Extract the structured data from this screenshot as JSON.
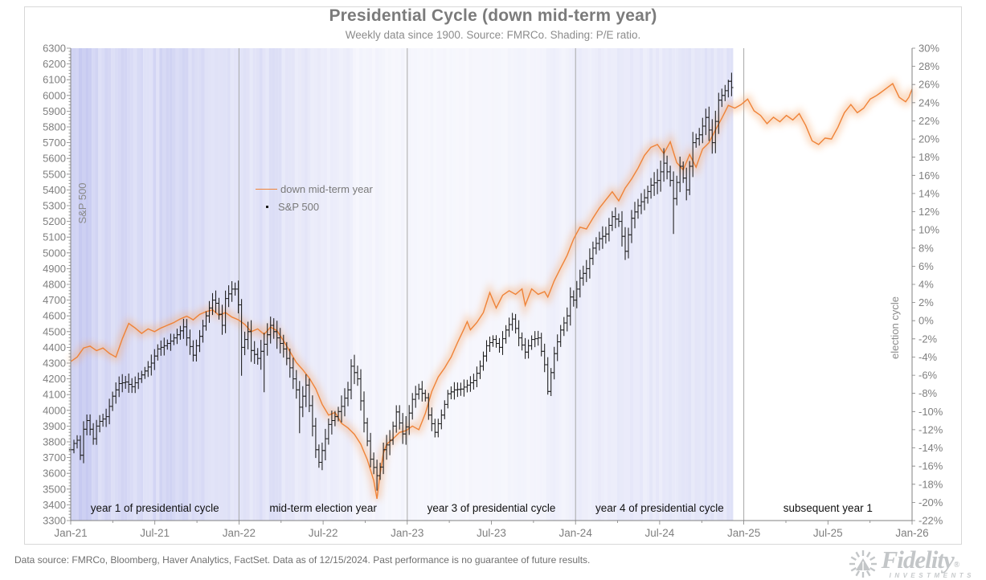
{
  "footer": {
    "text": "Data source: FMRCo, Bloomberg, Haver Analytics, FactSet. Data as of 12/15/2024. Past performance is no guarantee of future results.",
    "logo_brand": "Fidelity",
    "logo_reg": "®",
    "logo_sub": "INVESTMENTS"
  },
  "colors": {
    "accent_orange": "#ef8338",
    "glow_orange": "#f6a466",
    "shading_base": "#bcc0ee",
    "year_grid": "#a8a8a8",
    "axis": "#808080",
    "tick_text": "#7f7f7f",
    "section_text": "#111111",
    "bars": "#1a1a1a",
    "frame": "#d8d8d8"
  },
  "chart_data": {
    "type": "line",
    "title": "Presidential Cycle (down mid-term year)",
    "subtitle": "Weekly data since 1900. Source: FMRCo. Shading: P/E ratio.",
    "x_tick_labels": [
      "Jan-21",
      "Jul-21",
      "Jan-22",
      "Jul-22",
      "Jan-23",
      "Jul-23",
      "Jan-24",
      "Jul-24",
      "Jan-25",
      "Jul-25",
      "Jan-26"
    ],
    "weeks_per_year": 52.2,
    "years_span": 5,
    "left_axis": {
      "label": "S&P 500",
      "min": 3300,
      "max": 6300,
      "step": 100,
      "minor_step": 20
    },
    "right_axis": {
      "label": "election cycle",
      "min": -22,
      "max": 30,
      "step": 2,
      "suffix": "%"
    },
    "section_labels": [
      "year 1 of presidential cycle",
      "mid-term election year",
      "year 3 of presidential cycle",
      "year 4 of presidential cycle",
      "subsequent year 1"
    ],
    "legend_position": "inside-top-left",
    "grid": "vertical-year-lines",
    "series": [
      {
        "name": "down mid-term year",
        "axis": "right",
        "style": "line-glow",
        "unit": "%",
        "x_unit": "weeks since Jan-2021",
        "points": [
          [
            0,
            -4.5
          ],
          [
            2,
            -4.0
          ],
          [
            4,
            -3.0
          ],
          [
            6,
            -2.8
          ],
          [
            8,
            -3.3
          ],
          [
            10,
            -3.0
          ],
          [
            12,
            -3.6
          ],
          [
            14,
            -4.0
          ],
          [
            16,
            -2.0
          ],
          [
            18,
            -0.3
          ],
          [
            20,
            -0.8
          ],
          [
            22,
            -1.4
          ],
          [
            24,
            -0.9
          ],
          [
            26,
            -1.2
          ],
          [
            28,
            -0.8
          ],
          [
            30,
            -0.5
          ],
          [
            32,
            -0.2
          ],
          [
            34,
            0.2
          ],
          [
            36,
            0.5
          ],
          [
            38,
            0.1
          ],
          [
            40,
            0.7
          ],
          [
            42,
            1.0
          ],
          [
            44,
            1.2
          ],
          [
            46,
            0.6
          ],
          [
            48,
            0.9
          ],
          [
            50,
            0.4
          ],
          [
            52,
            0.1
          ],
          [
            54,
            -0.4
          ],
          [
            56,
            -1.2
          ],
          [
            58,
            -0.9
          ],
          [
            60,
            -1.5
          ],
          [
            62,
            -0.7
          ],
          [
            64,
            -1.1
          ],
          [
            66,
            -2.2
          ],
          [
            68,
            -3.4
          ],
          [
            70,
            -4.6
          ],
          [
            72,
            -5.4
          ],
          [
            74,
            -6.3
          ],
          [
            76,
            -7.5
          ],
          [
            78,
            -9.2
          ],
          [
            80,
            -10.4
          ],
          [
            82,
            -10.1
          ],
          [
            84,
            -11.3
          ],
          [
            86,
            -11.8
          ],
          [
            88,
            -12.5
          ],
          [
            90,
            -13.6
          ],
          [
            92,
            -15.3
          ],
          [
            94,
            -17.6
          ],
          [
            95,
            -19.6
          ],
          [
            96,
            -16.8
          ],
          [
            97,
            -14.6
          ],
          [
            98,
            -13.6
          ],
          [
            100,
            -13.0
          ],
          [
            102,
            -12.3
          ],
          [
            104,
            -12.1
          ],
          [
            106,
            -11.6
          ],
          [
            108,
            -12.0
          ],
          [
            110,
            -10.2
          ],
          [
            112,
            -7.8
          ],
          [
            114,
            -6.2
          ],
          [
            116,
            -5.2
          ],
          [
            118,
            -4.0
          ],
          [
            120,
            -2.4
          ],
          [
            122,
            -0.9
          ],
          [
            123,
            -0.1
          ],
          [
            124,
            -1.0
          ],
          [
            126,
            -0.2
          ],
          [
            128,
            0.9
          ],
          [
            130,
            3.1
          ],
          [
            132,
            1.4
          ],
          [
            134,
            2.8
          ],
          [
            136,
            3.3
          ],
          [
            138,
            2.9
          ],
          [
            140,
            3.5
          ],
          [
            141,
            1.7
          ],
          [
            143,
            3.5
          ],
          [
            145,
            2.9
          ],
          [
            147,
            3.2
          ],
          [
            148,
            2.6
          ],
          [
            150,
            4.4
          ],
          [
            152,
            5.8
          ],
          [
            154,
            7.2
          ],
          [
            156,
            9.0
          ],
          [
            158,
            10.3
          ],
          [
            160,
            10.1
          ],
          [
            162,
            11.3
          ],
          [
            164,
            12.4
          ],
          [
            166,
            13.3
          ],
          [
            168,
            14.2
          ],
          [
            170,
            13.2
          ],
          [
            172,
            14.6
          ],
          [
            174,
            15.6
          ],
          [
            176,
            16.8
          ],
          [
            178,
            18.2
          ],
          [
            180,
            19.1
          ],
          [
            182,
            19.4
          ],
          [
            184,
            18.4
          ],
          [
            186,
            19.7
          ],
          [
            188,
            17.4
          ],
          [
            190,
            16.6
          ],
          [
            192,
            18.3
          ],
          [
            194,
            16.9
          ],
          [
            196,
            18.9
          ],
          [
            198,
            19.6
          ],
          [
            200,
            21.0
          ],
          [
            202,
            22.3
          ],
          [
            204,
            23.7
          ],
          [
            206,
            23.4
          ],
          [
            208,
            23.8
          ],
          [
            210,
            24.4
          ],
          [
            212,
            23.1
          ],
          [
            214,
            22.6
          ],
          [
            216,
            21.7
          ],
          [
            218,
            22.4
          ],
          [
            220,
            21.9
          ],
          [
            222,
            22.6
          ],
          [
            224,
            22.1
          ],
          [
            226,
            22.8
          ],
          [
            228,
            21.5
          ],
          [
            230,
            19.8
          ],
          [
            232,
            19.4
          ],
          [
            234,
            20.1
          ],
          [
            236,
            20.0
          ],
          [
            238,
            21.3
          ],
          [
            240,
            22.9
          ],
          [
            242,
            23.8
          ],
          [
            244,
            22.9
          ],
          [
            246,
            23.4
          ],
          [
            248,
            24.4
          ],
          [
            250,
            24.8
          ],
          [
            252,
            25.3
          ],
          [
            255,
            26.1
          ],
          [
            257,
            24.6
          ],
          [
            259,
            24.1
          ],
          [
            260,
            24.6
          ],
          [
            261,
            25.5
          ]
        ]
      },
      {
        "name": "S&P 500",
        "axis": "left",
        "style": "weekly-hilo-bars",
        "last_week": 205,
        "close_anchors": [
          [
            0,
            3750
          ],
          [
            1,
            3790
          ],
          [
            2,
            3810
          ],
          [
            3,
            3715
          ],
          [
            4,
            3880
          ],
          [
            5,
            3935
          ],
          [
            6,
            3880
          ],
          [
            7,
            3820
          ],
          [
            8,
            3900
          ],
          [
            9,
            3930
          ],
          [
            11,
            3960
          ],
          [
            13,
            4090
          ],
          [
            14,
            4130
          ],
          [
            15,
            4170
          ],
          [
            17,
            4180
          ],
          [
            19,
            4150
          ],
          [
            21,
            4200
          ],
          [
            23,
            4250
          ],
          [
            25,
            4300
          ],
          [
            27,
            4390
          ],
          [
            29,
            4410
          ],
          [
            31,
            4440
          ],
          [
            33,
            4480
          ],
          [
            35,
            4530
          ],
          [
            36,
            4460
          ],
          [
            38,
            4350
          ],
          [
            40,
            4470
          ],
          [
            42,
            4600
          ],
          [
            44,
            4700
          ],
          [
            45,
            4680
          ],
          [
            47,
            4540
          ],
          [
            48,
            4710
          ],
          [
            50,
            4770
          ],
          [
            51,
            4770
          ],
          [
            52,
            4670
          ],
          [
            53,
            4400
          ],
          [
            55,
            4500
          ],
          [
            56,
            4380
          ],
          [
            58,
            4330
          ],
          [
            60,
            4420
          ],
          [
            62,
            4540
          ],
          [
            64,
            4460
          ],
          [
            66,
            4390
          ],
          [
            68,
            4270
          ],
          [
            70,
            4130
          ],
          [
            71,
            4020
          ],
          [
            73,
            4160
          ],
          [
            75,
            3900
          ],
          [
            76,
            3750
          ],
          [
            77,
            3670
          ],
          [
            79,
            3820
          ],
          [
            80,
            3910
          ],
          [
            82,
            3960
          ],
          [
            84,
            4025
          ],
          [
            86,
            4130
          ],
          [
            87,
            4280
          ],
          [
            89,
            4200
          ],
          [
            91,
            3920
          ],
          [
            93,
            3690
          ],
          [
            95,
            3585
          ],
          [
            96,
            3640
          ],
          [
            97,
            3750
          ],
          [
            99,
            3810
          ],
          [
            101,
            3990
          ],
          [
            103,
            3850
          ],
          [
            104,
            3895
          ],
          [
            106,
            4070
          ],
          [
            108,
            4135
          ],
          [
            110,
            4080
          ],
          [
            111,
            3970
          ],
          [
            113,
            3860
          ],
          [
            115,
            3970
          ],
          [
            117,
            4105
          ],
          [
            119,
            4130
          ],
          [
            121,
            4135
          ],
          [
            123,
            4160
          ],
          [
            125,
            4190
          ],
          [
            127,
            4280
          ],
          [
            129,
            4410
          ],
          [
            131,
            4450
          ],
          [
            133,
            4400
          ],
          [
            135,
            4510
          ],
          [
            137,
            4580
          ],
          [
            139,
            4460
          ],
          [
            141,
            4370
          ],
          [
            143,
            4450
          ],
          [
            145,
            4460
          ],
          [
            147,
            4290
          ],
          [
            148,
            4120
          ],
          [
            150,
            4360
          ],
          [
            152,
            4510
          ],
          [
            154,
            4600
          ],
          [
            155,
            4720
          ],
          [
            156,
            4700
          ],
          [
            158,
            4840
          ],
          [
            160,
            4900
          ],
          [
            162,
            5030
          ],
          [
            164,
            5090
          ],
          [
            166,
            5120
          ],
          [
            168,
            5230
          ],
          [
            170,
            5200
          ],
          [
            172,
            5010
          ],
          [
            174,
            5220
          ],
          [
            176,
            5300
          ],
          [
            178,
            5350
          ],
          [
            180,
            5430
          ],
          [
            182,
            5460
          ],
          [
            184,
            5570
          ],
          [
            186,
            5460
          ],
          [
            187,
            5345
          ],
          [
            189,
            5550
          ],
          [
            191,
            5400
          ],
          [
            193,
            5700
          ],
          [
            195,
            5750
          ],
          [
            197,
            5860
          ],
          [
            199,
            5700
          ],
          [
            201,
            5970
          ],
          [
            203,
            6030
          ],
          [
            204,
            6090
          ],
          [
            205,
            6050
          ]
        ],
        "extreme_overrides": [
          [
            0,
            3660,
            null
          ],
          [
            53,
            4220,
            null
          ],
          [
            60,
            4115,
            null
          ],
          [
            71,
            3855,
            null
          ],
          [
            77,
            3635,
            null
          ],
          [
            87,
            null,
            4325
          ],
          [
            95,
            3490,
            null
          ],
          [
            148,
            4100,
            null
          ],
          [
            172,
            4955,
            null
          ],
          [
            184,
            null,
            5665
          ],
          [
            187,
            5120,
            null
          ],
          [
            201,
            null,
            6017
          ],
          [
            204,
            null,
            6100
          ]
        ]
      }
    ],
    "shading": {
      "label": "P/E ratio",
      "bands": [
        [
          0,
          8,
          0.72
        ],
        [
          8,
          14,
          0.6
        ],
        [
          14,
          20,
          0.68
        ],
        [
          20,
          28,
          0.55
        ],
        [
          28,
          36,
          0.62
        ],
        [
          36,
          44,
          0.55
        ],
        [
          44,
          50,
          0.48
        ],
        [
          50,
          58,
          0.42
        ],
        [
          58,
          66,
          0.45
        ],
        [
          66,
          74,
          0.36
        ],
        [
          74,
          82,
          0.3
        ],
        [
          82,
          88,
          0.26
        ],
        [
          88,
          96,
          0.17
        ],
        [
          96,
          104,
          0.15
        ],
        [
          104,
          120,
          0.14
        ],
        [
          120,
          136,
          0.13
        ],
        [
          136,
          148,
          0.16
        ],
        [
          148,
          156,
          0.22
        ],
        [
          156,
          168,
          0.28
        ],
        [
          168,
          180,
          0.33
        ],
        [
          180,
          192,
          0.36
        ],
        [
          192,
          206,
          0.42
        ]
      ]
    }
  }
}
